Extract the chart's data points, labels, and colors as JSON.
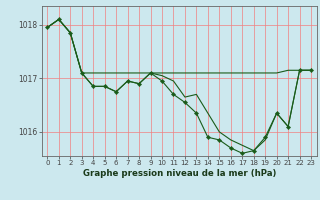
{
  "background_color": "#cce8ee",
  "grid_color": "#f08080",
  "line_color": "#1a5c1a",
  "title": "Graphe pression niveau de la mer (hPa)",
  "xlim": [
    -0.5,
    23.5
  ],
  "ylim": [
    1015.55,
    1018.35
  ],
  "yticks": [
    1016,
    1017,
    1018
  ],
  "xticks": [
    0,
    1,
    2,
    3,
    4,
    5,
    6,
    7,
    8,
    9,
    10,
    11,
    12,
    13,
    14,
    15,
    16,
    17,
    18,
    19,
    20,
    21,
    22,
    23
  ],
  "series1_x": [
    0,
    1,
    2,
    3,
    4,
    5,
    6,
    7,
    8,
    9,
    10,
    11,
    12,
    13,
    14,
    15,
    16,
    17,
    18,
    19,
    20,
    21,
    22,
    23
  ],
  "series1_y": [
    1017.95,
    1018.1,
    1017.85,
    1017.1,
    1016.85,
    1016.85,
    1016.75,
    1016.95,
    1016.9,
    1017.1,
    1016.95,
    1016.7,
    1016.55,
    1016.35,
    1015.9,
    1015.85,
    1015.7,
    1015.6,
    1015.65,
    1015.9,
    1016.35,
    1016.1,
    1017.15,
    1017.15
  ],
  "series2_x": [
    0,
    1,
    2,
    3,
    4,
    5,
    6,
    7,
    8,
    9,
    10,
    11,
    12,
    13,
    14,
    15,
    16,
    17,
    18,
    19,
    20,
    21,
    22,
    23
  ],
  "series2_y": [
    1017.95,
    1018.1,
    1017.85,
    1017.1,
    1017.1,
    1017.1,
    1017.1,
    1017.1,
    1017.1,
    1017.1,
    1017.1,
    1017.1,
    1017.1,
    1017.1,
    1017.1,
    1017.1,
    1017.1,
    1017.1,
    1017.1,
    1017.1,
    1017.1,
    1017.15,
    1017.15,
    1017.15
  ],
  "series3_x": [
    0,
    1,
    2,
    3,
    4,
    5,
    6,
    7,
    8,
    9,
    10,
    11,
    12,
    13,
    14,
    15,
    16,
    17,
    18,
    19,
    20,
    21,
    22,
    23
  ],
  "series3_y": [
    1017.95,
    1018.1,
    1017.85,
    1017.1,
    1016.85,
    1016.85,
    1016.75,
    1016.95,
    1016.9,
    1017.1,
    1017.05,
    1016.95,
    1016.65,
    1016.7,
    1016.35,
    1016.0,
    1015.85,
    1015.75,
    1015.65,
    1015.85,
    1016.35,
    1016.1,
    1017.15,
    1017.15
  ],
  "tick_fontsize": 5.0,
  "title_fontsize": 6.2
}
